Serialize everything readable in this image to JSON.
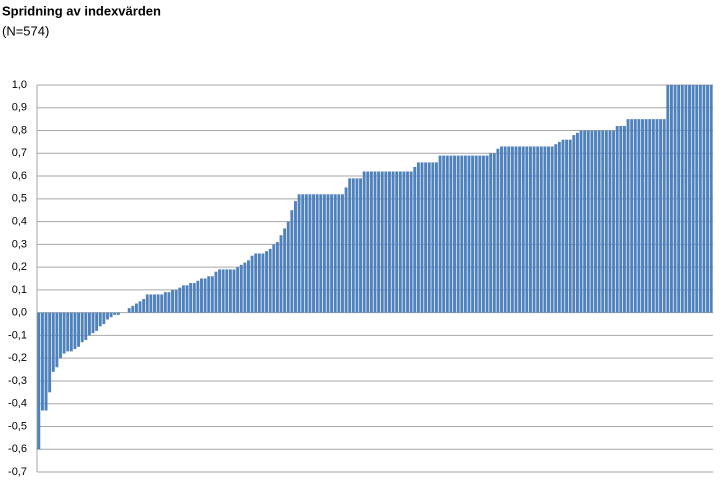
{
  "chart_data": {
    "type": "bar",
    "title": "Spridning av indexvärden",
    "subtitle": "(N=574)",
    "values": [
      -0.6,
      -0.43,
      -0.43,
      -0.35,
      -0.26,
      -0.24,
      -0.2,
      -0.18,
      -0.17,
      -0.17,
      -0.16,
      -0.15,
      -0.13,
      -0.12,
      -0.1,
      -0.09,
      -0.08,
      -0.06,
      -0.05,
      -0.03,
      -0.02,
      -0.01,
      -0.01,
      0,
      0,
      0.02,
      0.03,
      0.04,
      0.05,
      0.06,
      0.08,
      0.08,
      0.08,
      0.08,
      0.08,
      0.09,
      0.09,
      0.1,
      0.1,
      0.11,
      0.12,
      0.12,
      0.13,
      0.13,
      0.14,
      0.15,
      0.15,
      0.16,
      0.16,
      0.18,
      0.19,
      0.19,
      0.19,
      0.19,
      0.19,
      0.2,
      0.21,
      0.22,
      0.23,
      0.25,
      0.26,
      0.26,
      0.26,
      0.27,
      0.28,
      0.3,
      0.31,
      0.34,
      0.37,
      0.4,
      0.45,
      0.49,
      0.52,
      0.52,
      0.52,
      0.52,
      0.52,
      0.52,
      0.52,
      0.52,
      0.52,
      0.52,
      0.52,
      0.52,
      0.52,
      0.55,
      0.59,
      0.59,
      0.59,
      0.59,
      0.62,
      0.62,
      0.62,
      0.62,
      0.62,
      0.62,
      0.62,
      0.62,
      0.62,
      0.62,
      0.62,
      0.62,
      0.62,
      0.62,
      0.64,
      0.66,
      0.66,
      0.66,
      0.66,
      0.66,
      0.66,
      0.69,
      0.69,
      0.69,
      0.69,
      0.69,
      0.69,
      0.69,
      0.69,
      0.69,
      0.69,
      0.69,
      0.69,
      0.69,
      0.69,
      0.7,
      0.7,
      0.72,
      0.73,
      0.73,
      0.73,
      0.73,
      0.73,
      0.73,
      0.73,
      0.73,
      0.73,
      0.73,
      0.73,
      0.73,
      0.73,
      0.73,
      0.73,
      0.74,
      0.75,
      0.76,
      0.76,
      0.76,
      0.78,
      0.79,
      0.8,
      0.8,
      0.8,
      0.8,
      0.8,
      0.8,
      0.8,
      0.8,
      0.8,
      0.8,
      0.82,
      0.82,
      0.82,
      0.85,
      0.85,
      0.85,
      0.85,
      0.85,
      0.85,
      0.85,
      0.85,
      0.85,
      0.85,
      0.85,
      1,
      1,
      1,
      1,
      1,
      1,
      1,
      1,
      1,
      1,
      1,
      1,
      1
    ],
    "color": "#4f81bd",
    "ylim": [
      -0.7,
      1.0
    ],
    "yticks": [
      {
        "value": -0.7,
        "label": "-0,7"
      },
      {
        "value": -0.6,
        "label": "-0,6"
      },
      {
        "value": -0.5,
        "label": "-0,5"
      },
      {
        "value": -0.4,
        "label": "-0,4"
      },
      {
        "value": -0.3,
        "label": "-0,3"
      },
      {
        "value": -0.2,
        "label": "-0,2"
      },
      {
        "value": -0.1,
        "label": "-0,1"
      },
      {
        "value": 0,
        "label": "0,0"
      },
      {
        "value": 0.1,
        "label": "0,1"
      },
      {
        "value": 0.2,
        "label": "0,2"
      },
      {
        "value": 0.3,
        "label": "0,3"
      },
      {
        "value": 0.4,
        "label": "0,4"
      },
      {
        "value": 0.5,
        "label": "0,5"
      },
      {
        "value": 0.6,
        "label": "0,6"
      },
      {
        "value": 0.7,
        "label": "0,7"
      },
      {
        "value": 0.8,
        "label": "0,8"
      },
      {
        "value": 0.9,
        "label": "0,9"
      },
      {
        "value": 1.0,
        "label": "1,0"
      }
    ],
    "grid": true
  }
}
